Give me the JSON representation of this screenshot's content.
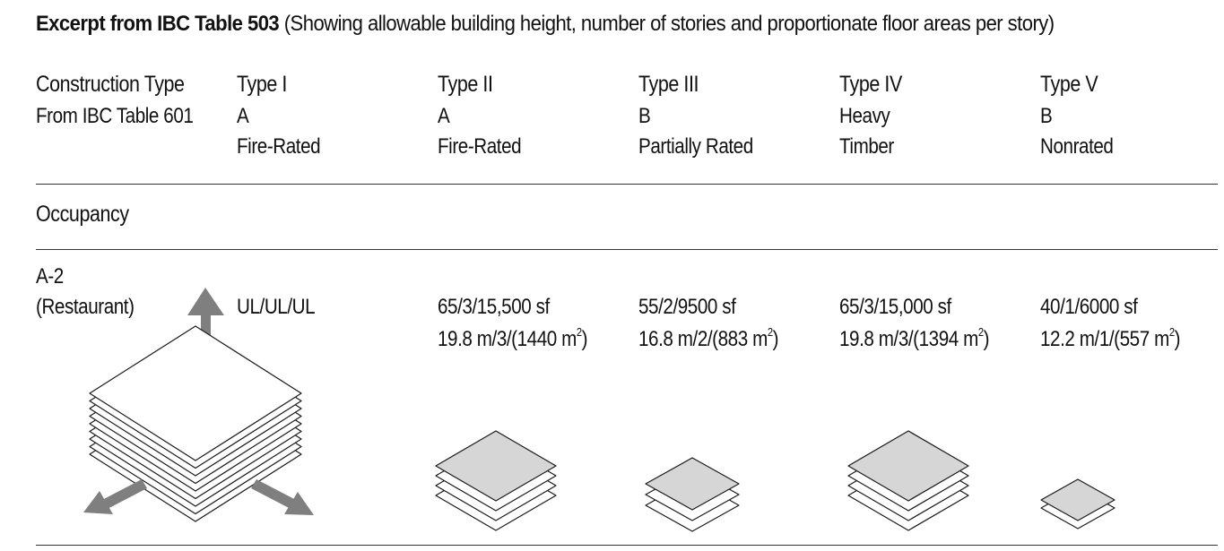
{
  "title": {
    "bold": "Excerpt from IBC Table 503",
    "rest": "(Showing allowable building height, number of stories and proportionate floor areas per story)"
  },
  "header": {
    "label": "Construction Type",
    "sublabel": "From IBC Table 601",
    "columns": [
      {
        "type": "Type I",
        "line1": "A",
        "line2": "Fire-Rated"
      },
      {
        "type": "Type II",
        "line1": "A",
        "line2": "Fire-Rated"
      },
      {
        "type": "Type III",
        "line1": "B",
        "line2": "Partially Rated"
      },
      {
        "type": "Type IV",
        "line1": "Heavy",
        "line2": "Timber"
      },
      {
        "type": "Type V",
        "line1": "B",
        "line2": "Nonrated"
      }
    ]
  },
  "occupancy_label": "Occupancy",
  "row": {
    "code": "A-2",
    "name": "(Restaurant)",
    "cells": [
      {
        "imperial": "UL/UL/UL",
        "metric_pre": "",
        "metric_exp": "",
        "metric_post": ""
      },
      {
        "imperial": "65/3/15,500 sf",
        "metric_pre": "19.8 m/3/(1440 m",
        "metric_exp": "2",
        "metric_post": ")"
      },
      {
        "imperial": "55/2/9500 sf",
        "metric_pre": "16.8 m/2/(883 m",
        "metric_exp": "2",
        "metric_post": ")"
      },
      {
        "imperial": "65/3/15,000 sf",
        "metric_pre": "19.8 m/3/(1394 m",
        "metric_exp": "2",
        "metric_post": ")"
      },
      {
        "imperial": "40/1/6000 sf",
        "metric_pre": "12.2 m/1/(557 m",
        "metric_exp": "2",
        "metric_post": ")"
      }
    ]
  },
  "colors": {
    "text": "#111111",
    "rule": "#333333",
    "arrow": "#7f7f7f",
    "plate_fill": "#d6d6d6",
    "plate_stroke": "#1a1a1a"
  }
}
